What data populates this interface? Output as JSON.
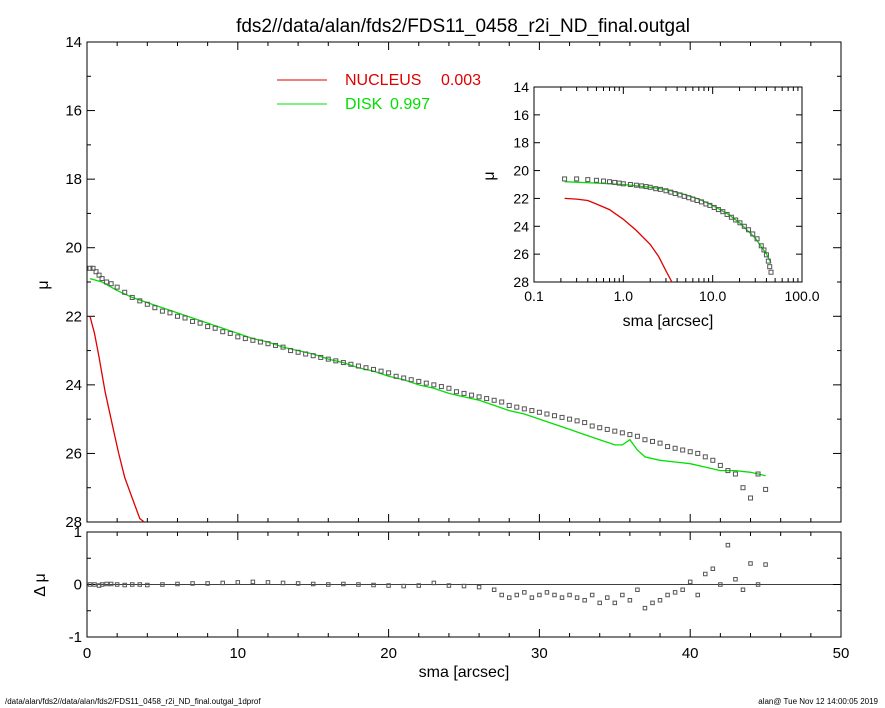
{
  "title": "fds2//data/alan/fds2/FDS11_0458_r2i_ND_final.outgal",
  "footer": {
    "left": "/data/alan/fds2//data/alan/fds2/FDS11_0458_r2i_ND_final.outgal_1dprof",
    "right": "alan@  Tue Nov 12 14:00:05 2019"
  },
  "colors": {
    "nucleus": "#e00000",
    "disk": "#00e000",
    "data": "#555555",
    "axes": "#000000"
  },
  "chart_data": [
    {
      "id": "main-profile",
      "type": "scatter",
      "xlabel": "",
      "ylabel": "μ",
      "xlim": [
        0,
        50
      ],
      "ylim": [
        28,
        14
      ],
      "y_inverted": true,
      "yticks": [
        14,
        16,
        18,
        20,
        22,
        24,
        26,
        28
      ],
      "legend": {
        "placement": "top-center",
        "entries": [
          {
            "label": "NUCLEUS",
            "value": "0.003",
            "color": "#e00000"
          },
          {
            "label": "DISK",
            "value": "0.997",
            "color": "#00e000"
          }
        ]
      },
      "series": [
        {
          "name": "NUCLEUS",
          "kind": "line",
          "color": "#e00000",
          "x": [
            0.2,
            0.5,
            0.8,
            1.0,
            1.2,
            1.5,
            1.8,
            2.1,
            2.5,
            3.0,
            3.5,
            3.8
          ],
          "y": [
            22.0,
            22.5,
            23.2,
            23.7,
            24.2,
            24.8,
            25.4,
            26.0,
            26.7,
            27.3,
            27.9,
            28.0
          ]
        },
        {
          "name": "DISK",
          "kind": "line",
          "color": "#00e000",
          "x": [
            0.2,
            1,
            2,
            3,
            4,
            5,
            6,
            7,
            8,
            9,
            10,
            11,
            12,
            13,
            14,
            15,
            16,
            17,
            18,
            19,
            20,
            21,
            22,
            23,
            24,
            25,
            26,
            27,
            28,
            29,
            30,
            31,
            32,
            33,
            34,
            35,
            35.5,
            36,
            36.5,
            37,
            38,
            39,
            40,
            41,
            42,
            43,
            44,
            45
          ],
          "y": [
            20.9,
            21.0,
            21.25,
            21.45,
            21.6,
            21.75,
            21.9,
            22.05,
            22.2,
            22.35,
            22.5,
            22.65,
            22.75,
            22.9,
            23.0,
            23.1,
            23.25,
            23.35,
            23.5,
            23.6,
            23.75,
            23.85,
            24.0,
            24.1,
            24.25,
            24.35,
            24.45,
            24.6,
            24.75,
            24.85,
            25.0,
            25.15,
            25.3,
            25.45,
            25.6,
            25.75,
            25.75,
            25.6,
            25.9,
            26.1,
            26.2,
            26.25,
            26.3,
            26.4,
            26.5,
            26.5,
            26.55,
            26.65
          ]
        },
        {
          "name": "data",
          "kind": "points",
          "color": "#555555",
          "x": [
            0.2,
            0.4,
            0.6,
            0.8,
            1.0,
            1.3,
            1.6,
            2.0,
            2.5,
            3.0,
            3.5,
            4.0,
            4.5,
            5.0,
            5.5,
            6.0,
            6.5,
            7.0,
            7.5,
            8.0,
            8.5,
            9.0,
            9.5,
            10.0,
            10.5,
            11.0,
            11.5,
            12.0,
            12.5,
            13.0,
            13.5,
            14.0,
            14.5,
            15.0,
            15.5,
            16.0,
            16.5,
            17.0,
            17.5,
            18.0,
            18.5,
            19.0,
            19.5,
            20.0,
            20.5,
            21.0,
            21.5,
            22.0,
            22.5,
            23.0,
            23.5,
            24.0,
            24.5,
            25.0,
            25.5,
            26.0,
            26.5,
            27.0,
            27.5,
            28.0,
            28.5,
            29.0,
            29.5,
            30.0,
            30.5,
            31.0,
            31.5,
            32.0,
            32.5,
            33.0,
            33.5,
            34.0,
            34.5,
            35.0,
            35.5,
            36.0,
            36.5,
            37.0,
            37.5,
            38.0,
            38.5,
            39.0,
            39.5,
            40.0,
            40.5,
            41.0,
            41.5,
            42.0,
            42.5,
            43.0,
            43.5,
            44.0,
            44.5,
            45.0
          ],
          "y": [
            20.6,
            20.6,
            20.7,
            20.8,
            20.9,
            21.0,
            21.05,
            21.15,
            21.3,
            21.45,
            21.55,
            21.65,
            21.75,
            21.85,
            21.9,
            22.0,
            22.05,
            22.15,
            22.2,
            22.3,
            22.35,
            22.45,
            22.5,
            22.6,
            22.65,
            22.7,
            22.75,
            22.8,
            22.85,
            22.9,
            23.0,
            23.05,
            23.1,
            23.15,
            23.2,
            23.25,
            23.3,
            23.35,
            23.4,
            23.45,
            23.5,
            23.55,
            23.6,
            23.65,
            23.75,
            23.8,
            23.85,
            23.9,
            23.95,
            24.0,
            24.05,
            24.1,
            24.2,
            24.25,
            24.3,
            24.35,
            24.4,
            24.45,
            24.5,
            24.6,
            24.65,
            24.7,
            24.75,
            24.8,
            24.85,
            24.9,
            24.95,
            25.0,
            25.05,
            25.1,
            25.2,
            25.25,
            25.3,
            25.35,
            25.4,
            25.45,
            25.5,
            25.6,
            25.65,
            25.7,
            25.8,
            25.85,
            25.9,
            25.95,
            26.0,
            26.1,
            26.2,
            26.35,
            26.5,
            26.6,
            27.0,
            27.3,
            26.6,
            27.05
          ]
        }
      ]
    },
    {
      "id": "inset-log-profile",
      "type": "scatter",
      "xlabel": "sma [arcsec]",
      "ylabel": "μ",
      "xscale": "log",
      "xlim": [
        0.1,
        100
      ],
      "xticks": [
        0.1,
        1.0,
        10.0,
        100.0
      ],
      "xtick_labels": [
        "0.1",
        "1.0",
        "10.0",
        "100.0"
      ],
      "ylim": [
        28,
        14
      ],
      "y_inverted": true,
      "yticks": [
        14,
        16,
        18,
        20,
        22,
        24,
        26,
        28
      ],
      "series": [
        {
          "name": "NUCLEUS",
          "kind": "line",
          "color": "#e00000",
          "x": [
            0.22,
            0.3,
            0.4,
            0.5,
            0.7,
            1.0,
            1.4,
            2.0,
            2.5,
            3.0,
            3.5
          ],
          "y": [
            22.0,
            22.05,
            22.15,
            22.4,
            22.8,
            23.5,
            24.3,
            25.3,
            26.2,
            27.2,
            28.0
          ]
        },
        {
          "name": "DISK",
          "kind": "line",
          "color": "#00e000",
          "x": [
            0.22,
            0.5,
            1.0,
            2.0,
            3.0,
            5.0,
            7.0,
            10.0,
            15.0,
            20.0,
            30.0,
            40.0,
            45.0
          ],
          "y": [
            20.8,
            20.9,
            21.0,
            21.2,
            21.35,
            21.75,
            22.05,
            22.5,
            23.15,
            23.75,
            24.85,
            26.0,
            26.65
          ]
        },
        {
          "name": "data",
          "kind": "points",
          "color": "#555555",
          "x": [
            0.22,
            0.3,
            0.4,
            0.5,
            0.6,
            0.7,
            0.8,
            0.9,
            1.0,
            1.2,
            1.4,
            1.6,
            1.8,
            2.0,
            2.3,
            2.6,
            3.0,
            3.4,
            3.8,
            4.3,
            4.8,
            5.4,
            6.0,
            6.7,
            7.5,
            8.4,
            9.3,
            10.4,
            11.6,
            13.0,
            14.5,
            16.2,
            18.1,
            20.2,
            22.6,
            25.2,
            28.1,
            31.4,
            35.0,
            37.5,
            40.0,
            42.0,
            43.5,
            45.0
          ],
          "y": [
            20.6,
            20.6,
            20.65,
            20.7,
            20.75,
            20.8,
            20.85,
            20.9,
            20.95,
            21.0,
            21.05,
            21.1,
            21.15,
            21.2,
            21.3,
            21.35,
            21.45,
            21.55,
            21.65,
            21.75,
            21.85,
            21.95,
            22.05,
            22.15,
            22.25,
            22.4,
            22.5,
            22.65,
            22.8,
            22.95,
            23.15,
            23.35,
            23.55,
            23.75,
            24.0,
            24.25,
            24.55,
            24.9,
            25.4,
            25.7,
            26.05,
            26.5,
            26.9,
            27.3
          ]
        }
      ]
    },
    {
      "id": "residuals",
      "type": "scatter",
      "xlabel": "sma [arcsec]",
      "ylabel": "Δ μ",
      "xlim": [
        0,
        50
      ],
      "xticks": [
        0,
        10,
        20,
        30,
        40,
        50
      ],
      "ylim": [
        -1,
        1
      ],
      "yticks": [
        -1,
        0,
        1
      ],
      "zero_line": true,
      "series": [
        {
          "name": "residual",
          "kind": "points",
          "color": "#555555",
          "x": [
            0.2,
            0.5,
            0.8,
            1.0,
            1.3,
            1.6,
            2.0,
            2.5,
            3.0,
            3.5,
            4.0,
            5.0,
            6.0,
            7.0,
            8.0,
            9.0,
            10.0,
            11.0,
            12.0,
            13.0,
            14.0,
            15.0,
            16.0,
            17.0,
            18.0,
            19.0,
            20.0,
            21.0,
            22.0,
            23.0,
            24.0,
            25.0,
            26.0,
            27.0,
            27.5,
            28.0,
            28.5,
            29.0,
            29.5,
            30.0,
            30.5,
            31.0,
            31.5,
            32.0,
            32.5,
            33.0,
            33.5,
            34.0,
            34.5,
            35.0,
            35.5,
            36.0,
            36.5,
            37.0,
            37.5,
            38.0,
            38.5,
            39.0,
            39.5,
            40.0,
            40.5,
            41.0,
            41.5,
            42.0,
            42.5,
            43.0,
            43.5,
            44.0,
            44.5,
            45.0
          ],
          "y": [
            0.0,
            0.0,
            -0.02,
            0.0,
            0.01,
            0.01,
            0.0,
            -0.01,
            0.0,
            0.0,
            -0.01,
            0.0,
            0.01,
            0.02,
            0.02,
            0.03,
            0.04,
            0.05,
            0.04,
            0.03,
            0.02,
            0.01,
            0.0,
            0.01,
            0.0,
            -0.01,
            -0.02,
            -0.03,
            -0.02,
            0.03,
            -0.02,
            -0.03,
            -0.05,
            -0.1,
            -0.2,
            -0.25,
            -0.2,
            -0.15,
            -0.25,
            -0.2,
            -0.15,
            -0.2,
            -0.25,
            -0.2,
            -0.25,
            -0.3,
            -0.2,
            -0.35,
            -0.25,
            -0.35,
            -0.2,
            -0.3,
            -0.1,
            -0.45,
            -0.35,
            -0.3,
            -0.2,
            -0.15,
            -0.1,
            0.05,
            -0.2,
            0.2,
            0.3,
            0.0,
            0.75,
            0.1,
            -0.1,
            0.4,
            0.0,
            0.38
          ]
        }
      ]
    }
  ]
}
